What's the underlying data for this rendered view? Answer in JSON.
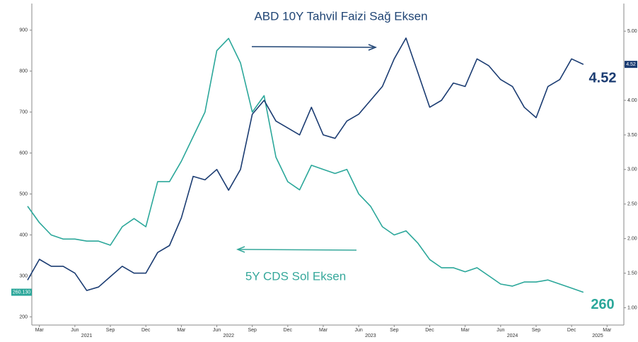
{
  "chart_data": {
    "type": "line",
    "annotations": [
      "ABD 10Y Tahvil Faizi Sağ Eksen",
      "5Y CDS Sol Eksen"
    ],
    "x": [
      "2021-02",
      "2021-03",
      "2021-04",
      "2021-05",
      "2021-06",
      "2021-07",
      "2021-08",
      "2021-09",
      "2021-10",
      "2021-11",
      "2021-12",
      "2022-01",
      "2022-02",
      "2022-03",
      "2022-04",
      "2022-05",
      "2022-06",
      "2022-07",
      "2022-08",
      "2022-09",
      "2022-10",
      "2022-11",
      "2022-12",
      "2023-01",
      "2023-02",
      "2023-03",
      "2023-04",
      "2023-05",
      "2023-06",
      "2023-07",
      "2023-08",
      "2023-09",
      "2023-10",
      "2023-11",
      "2023-12",
      "2024-01",
      "2024-02",
      "2024-03",
      "2024-04",
      "2024-05",
      "2024-06",
      "2024-07",
      "2024-08",
      "2024-09",
      "2024-10",
      "2024-11",
      "2024-12",
      "2025-01"
    ],
    "xticks": [
      {
        "value": "2021-03",
        "label": "Mar"
      },
      {
        "value": "2021-06",
        "label": "Jun"
      },
      {
        "value": "2021-09",
        "label": "Sep"
      },
      {
        "value": "2021-12",
        "label": "Dec"
      },
      {
        "value": "2022-03",
        "label": "Mar"
      },
      {
        "value": "2022-06",
        "label": "Jun"
      },
      {
        "value": "2022-09",
        "label": "Sep"
      },
      {
        "value": "2022-12",
        "label": "Dec"
      },
      {
        "value": "2023-03",
        "label": "Mar"
      },
      {
        "value": "2023-06",
        "label": "Jun"
      },
      {
        "value": "2023-09",
        "label": "Sep"
      },
      {
        "value": "2023-12",
        "label": "Dec"
      },
      {
        "value": "2024-03",
        "label": "Mar"
      },
      {
        "value": "2024-06",
        "label": "Jun"
      },
      {
        "value": "2024-09",
        "label": "Sep"
      },
      {
        "value": "2024-12",
        "label": "Dec"
      },
      {
        "value": "2025-03",
        "label": "Mar"
      }
    ],
    "years": [
      2021,
      2022,
      2023,
      2024,
      2025
    ],
    "ylim": [
      180,
      965
    ],
    "yticks": [
      200,
      300,
      400,
      500,
      600,
      700,
      800,
      900
    ],
    "y2lim": [
      0.75,
      5.4
    ],
    "y2ticks": [
      {
        "value": 1,
        "label": "1.00"
      },
      {
        "value": 1.5,
        "label": "1.50"
      },
      {
        "value": 2,
        "label": "2.00"
      },
      {
        "value": 2.5,
        "label": "2.50"
      },
      {
        "value": 3,
        "label": "3.00"
      },
      {
        "value": 3.5,
        "label": "3.50"
      },
      {
        "value": 4,
        "label": "4.00"
      },
      {
        "value": 4.5,
        "label": "4.50"
      },
      {
        "value": 5,
        "label": "5.00"
      }
    ],
    "series": [
      {
        "name": "5Y CDS",
        "color": "#2ba79a",
        "axis": "y",
        "values": [
          470,
          430,
          400,
          390,
          390,
          385,
          385,
          375,
          420,
          440,
          420,
          530,
          530,
          580,
          640,
          700,
          850,
          880,
          820,
          700,
          740,
          590,
          530,
          510,
          570,
          560,
          550,
          560,
          500,
          470,
          420,
          400,
          410,
          380,
          340,
          320,
          320,
          310,
          320,
          300,
          280,
          275,
          285,
          285,
          290,
          280,
          270,
          260.13
        ],
        "last_labels": [
          "260.130",
          "260"
        ]
      },
      {
        "name": "ABD 10Y",
        "color": "#1b3c72",
        "axis": "y2",
        "values": [
          1.4,
          1.7,
          1.6,
          1.6,
          1.5,
          1.25,
          1.3,
          1.45,
          1.6,
          1.5,
          1.5,
          1.8,
          1.9,
          2.3,
          2.9,
          2.85,
          3.0,
          2.7,
          3.0,
          3.8,
          4.0,
          3.7,
          3.6,
          3.5,
          3.9,
          3.5,
          3.45,
          3.7,
          3.8,
          4.0,
          4.2,
          4.6,
          4.9,
          4.4,
          3.9,
          4.0,
          4.25,
          4.2,
          4.6,
          4.5,
          4.3,
          4.2,
          3.9,
          3.75,
          4.2,
          4.3,
          4.6,
          4.52
        ]
      }
    ]
  }
}
